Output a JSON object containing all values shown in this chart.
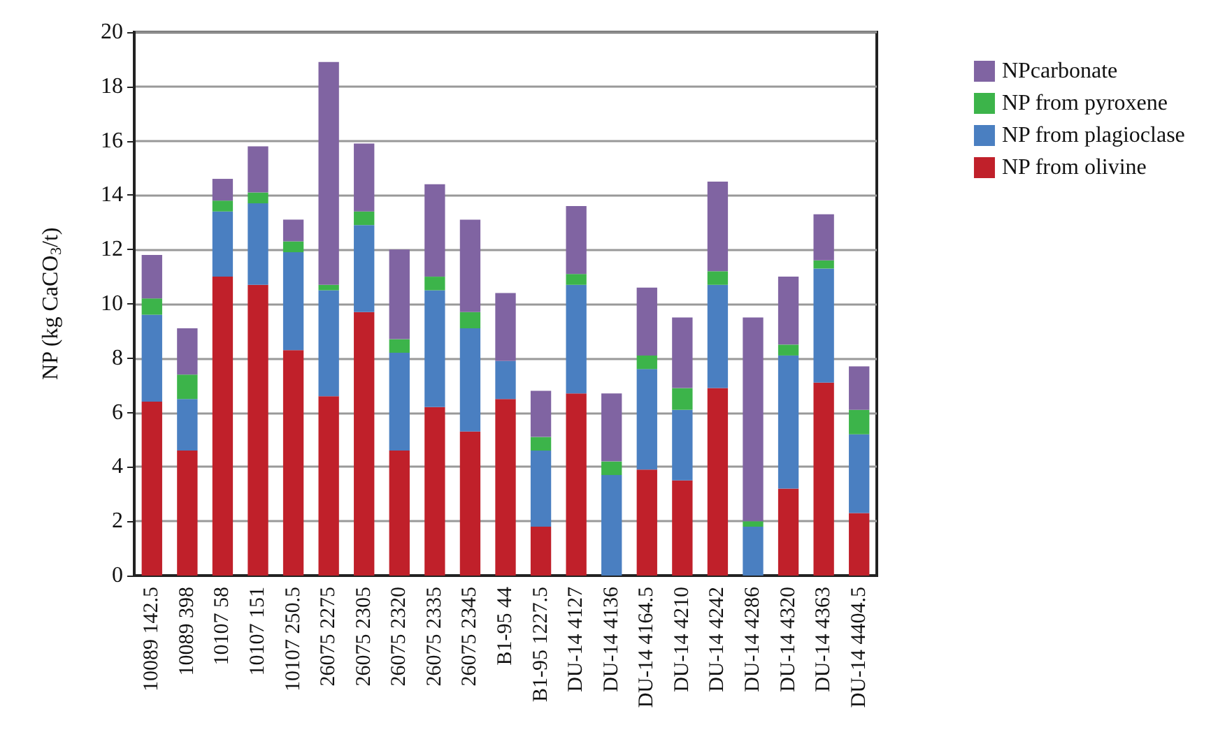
{
  "chart_data": {
    "type": "bar",
    "stacked": true,
    "ylabel": "NP (kg CaCO$_{3}$/t)",
    "categories": [
      "10089 142.5",
      "10089 398",
      "10107 58",
      "10107 151",
      "10107 250.5",
      "26075 2275",
      "26075 2305",
      "26075 2320",
      "26075 2335",
      "26075 2345",
      "B1-95 44",
      "B1-95 1227.5",
      "DU-14 4127",
      "DU-14 4136",
      "DU-14 4164.5",
      "DU-14 4210",
      "DU-14 4242",
      "DU-14 4286",
      "DU-14 4320",
      "DU-14 4363",
      "DU-14 4404.5"
    ],
    "series": [
      {
        "name": "NP from olivine",
        "color": "#c0202a",
        "values": [
          6.4,
          4.6,
          11.0,
          10.7,
          8.3,
          6.6,
          9.7,
          4.6,
          6.2,
          5.3,
          6.5,
          1.8,
          6.7,
          0,
          3.9,
          3.5,
          6.9,
          0,
          3.2,
          7.1,
          2.3
        ]
      },
      {
        "name": "NP from plagioclase",
        "color": "#4a7fc1",
        "values": [
          3.2,
          1.9,
          2.4,
          3.0,
          3.6,
          3.9,
          3.2,
          3.6,
          4.3,
          3.8,
          1.4,
          2.8,
          4.0,
          3.7,
          3.7,
          2.6,
          3.8,
          1.8,
          4.9,
          4.2,
          2.9
        ]
      },
      {
        "name": "NP from pyroxene",
        "color": "#3cb44a",
        "values": [
          0.6,
          0.9,
          0.4,
          0.4,
          0.4,
          0.2,
          0.5,
          0.5,
          0.5,
          0.6,
          0,
          0.5,
          0.4,
          0.5,
          0.5,
          0.8,
          0.5,
          0.2,
          0.4,
          0.3,
          0.9
        ]
      },
      {
        "name": "NPcarbonate",
        "color": "#8064a2",
        "values": [
          1.6,
          1.7,
          0.8,
          1.7,
          0.8,
          8.2,
          2.5,
          3.3,
          3.4,
          3.4,
          2.5,
          1.7,
          2.5,
          2.5,
          2.5,
          2.6,
          3.3,
          7.5,
          2.5,
          1.7,
          1.6
        ]
      }
    ],
    "ylim": [
      0,
      20
    ],
    "yticks": [
      0,
      2,
      4,
      6,
      8,
      10,
      12,
      14,
      16,
      18,
      20
    ],
    "grid": "y",
    "legend": "top right"
  }
}
